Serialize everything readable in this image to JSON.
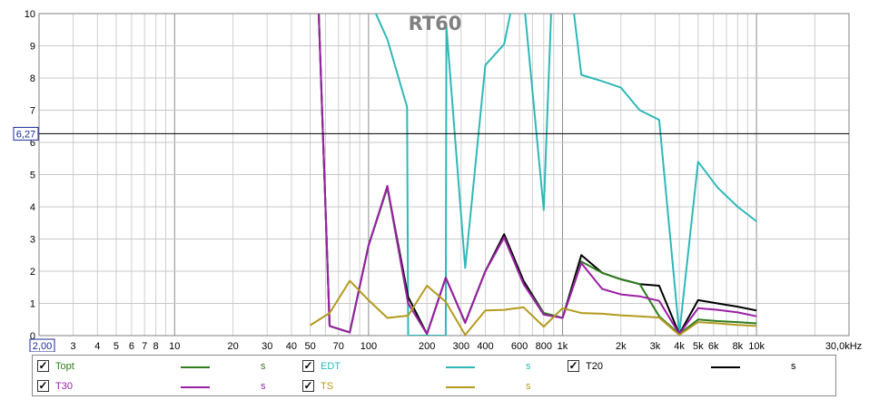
{
  "chart_data": {
    "type": "line",
    "title": "RT60",
    "x_scale": "log",
    "xlim": [
      2,
      30000
    ],
    "ylim": [
      0,
      10
    ],
    "grid": true,
    "cursor_value": "6,27",
    "cursor_y": 6.27,
    "x_ticks": [
      {
        "v": 2,
        "label": "2,00"
      },
      {
        "v": 3,
        "label": "3"
      },
      {
        "v": 4,
        "label": "4"
      },
      {
        "v": 5,
        "label": "5"
      },
      {
        "v": 6,
        "label": "6"
      },
      {
        "v": 7,
        "label": "7"
      },
      {
        "v": 8,
        "label": "8"
      },
      {
        "v": 10,
        "label": "10"
      },
      {
        "v": 20,
        "label": "20"
      },
      {
        "v": 30,
        "label": "30"
      },
      {
        "v": 40,
        "label": "40"
      },
      {
        "v": 50,
        "label": "50"
      },
      {
        "v": 70,
        "label": "70"
      },
      {
        "v": 100,
        "label": "100"
      },
      {
        "v": 200,
        "label": "200"
      },
      {
        "v": 300,
        "label": "300"
      },
      {
        "v": 400,
        "label": "400"
      },
      {
        "v": 600,
        "label": "600"
      },
      {
        "v": 800,
        "label": "800"
      },
      {
        "v": 1000,
        "label": "1k"
      },
      {
        "v": 2000,
        "label": "2k"
      },
      {
        "v": 3000,
        "label": "3k"
      },
      {
        "v": 4000,
        "label": "4k"
      },
      {
        "v": 5000,
        "label": "5k"
      },
      {
        "v": 6000,
        "label": "6k"
      },
      {
        "v": 8000,
        "label": "8k"
      },
      {
        "v": 10000,
        "label": "10k"
      },
      {
        "v": 30000,
        "label": "30,0kHz"
      }
    ],
    "y_ticks": [
      {
        "v": 0,
        "label": "0"
      },
      {
        "v": 1,
        "label": "1"
      },
      {
        "v": 2,
        "label": "2"
      },
      {
        "v": 3,
        "label": "3"
      },
      {
        "v": 4,
        "label": "4"
      },
      {
        "v": 5,
        "label": "5"
      },
      {
        "v": 6,
        "label": "6"
      },
      {
        "v": 7,
        "label": "7"
      },
      {
        "v": 8,
        "label": "8"
      },
      {
        "v": 9,
        "label": "9"
      },
      {
        "v": 10,
        "label": "10"
      }
    ],
    "series": [
      {
        "name": "EDT",
        "color": "#2fb8b8",
        "points": [
          [
            100,
            10.5
          ],
          [
            125,
            9.2
          ],
          [
            158,
            7.1
          ],
          [
            160,
            0
          ],
          [
            250,
            0
          ],
          [
            252,
            9.6
          ],
          [
            315,
            2.1
          ],
          [
            400,
            8.4
          ],
          [
            500,
            9.05
          ],
          [
            560,
            10.5
          ],
          [
            630,
            10.5
          ],
          [
            800,
            3.9
          ],
          [
            880,
            10.5
          ],
          [
            1120,
            10.5
          ],
          [
            1250,
            8.1
          ],
          [
            1600,
            7.9
          ],
          [
            2000,
            7.7
          ],
          [
            2500,
            7.0
          ],
          [
            3150,
            6.7
          ],
          [
            4000,
            0.05
          ],
          [
            5000,
            5.4
          ],
          [
            6300,
            4.6
          ],
          [
            8000,
            4.0
          ],
          [
            10000,
            3.55
          ]
        ]
      },
      {
        "name": "T20",
        "color": "#000000",
        "points": [
          [
            55,
            10.5
          ],
          [
            63,
            0.3
          ],
          [
            80,
            0.1
          ],
          [
            100,
            2.8
          ],
          [
            125,
            4.6
          ],
          [
            160,
            1.2
          ],
          [
            200,
            0.05
          ],
          [
            250,
            1.8
          ],
          [
            315,
            0.4
          ],
          [
            400,
            2.0
          ],
          [
            500,
            3.15
          ],
          [
            630,
            1.7
          ],
          [
            800,
            0.7
          ],
          [
            1000,
            0.55
          ],
          [
            1250,
            2.5
          ],
          [
            1600,
            1.95
          ],
          [
            2000,
            1.75
          ],
          [
            2500,
            1.6
          ],
          [
            3150,
            1.55
          ],
          [
            4000,
            0.05
          ],
          [
            5000,
            1.1
          ],
          [
            6300,
            1.0
          ],
          [
            8000,
            0.9
          ],
          [
            10000,
            0.78
          ]
        ]
      },
      {
        "name": "Topt",
        "color": "#2e7d1e",
        "points": [
          [
            55,
            10.5
          ],
          [
            63,
            0.3
          ],
          [
            80,
            0.1
          ],
          [
            100,
            2.8
          ],
          [
            125,
            4.6
          ],
          [
            160,
            1.0
          ],
          [
            200,
            0.05
          ],
          [
            250,
            1.8
          ],
          [
            315,
            0.4
          ],
          [
            400,
            2.0
          ],
          [
            500,
            3.05
          ],
          [
            630,
            1.6
          ],
          [
            800,
            0.7
          ],
          [
            1000,
            0.55
          ],
          [
            1250,
            2.3
          ],
          [
            1600,
            1.95
          ],
          [
            2000,
            1.75
          ],
          [
            2500,
            1.6
          ],
          [
            3150,
            0.6
          ],
          [
            4000,
            0.05
          ],
          [
            5000,
            0.5
          ],
          [
            6300,
            0.45
          ],
          [
            8000,
            0.42
          ],
          [
            10000,
            0.38
          ]
        ]
      },
      {
        "name": "T30",
        "color": "#9b1fa6",
        "points": [
          [
            55,
            10.5
          ],
          [
            63,
            0.3
          ],
          [
            80,
            0.1
          ],
          [
            100,
            2.8
          ],
          [
            125,
            4.65
          ],
          [
            160,
            1.0
          ],
          [
            200,
            0.05
          ],
          [
            250,
            1.8
          ],
          [
            315,
            0.4
          ],
          [
            400,
            2.0
          ],
          [
            500,
            3.05
          ],
          [
            630,
            1.6
          ],
          [
            800,
            0.65
          ],
          [
            1000,
            0.55
          ],
          [
            1250,
            2.25
          ],
          [
            1600,
            1.45
          ],
          [
            2000,
            1.28
          ],
          [
            2500,
            1.22
          ],
          [
            3150,
            1.08
          ],
          [
            4000,
            0.05
          ],
          [
            5000,
            0.85
          ],
          [
            6300,
            0.8
          ],
          [
            8000,
            0.72
          ],
          [
            10000,
            0.6
          ]
        ]
      },
      {
        "name": "TS",
        "color": "#b39a1e",
        "points": [
          [
            50,
            0.32
          ],
          [
            63,
            0.7
          ],
          [
            80,
            1.7
          ],
          [
            100,
            1.1
          ],
          [
            125,
            0.55
          ],
          [
            160,
            0.62
          ],
          [
            200,
            1.55
          ],
          [
            250,
            1.05
          ],
          [
            315,
            0.02
          ],
          [
            400,
            0.78
          ],
          [
            500,
            0.8
          ],
          [
            630,
            0.88
          ],
          [
            800,
            0.28
          ],
          [
            1000,
            0.85
          ],
          [
            1250,
            0.7
          ],
          [
            1600,
            0.68
          ],
          [
            2000,
            0.63
          ],
          [
            2500,
            0.6
          ],
          [
            3150,
            0.56
          ],
          [
            4000,
            0.02
          ],
          [
            5000,
            0.42
          ],
          [
            6300,
            0.38
          ],
          [
            8000,
            0.33
          ],
          [
            10000,
            0.3
          ]
        ]
      }
    ]
  },
  "legend": {
    "items": [
      {
        "name": "Topt",
        "unit": "s",
        "color": "#2e7d1e",
        "checked": true
      },
      {
        "name": "EDT",
        "unit": "s",
        "color": "#2fb8b8",
        "checked": true
      },
      {
        "name": "T20",
        "unit": "s",
        "color": "#000000",
        "checked": true
      },
      {
        "name": "T30",
        "unit": "s",
        "color": "#9b1fa6",
        "checked": true
      },
      {
        "name": "TS",
        "unit": "s",
        "color": "#b39a1e",
        "checked": true
      }
    ]
  }
}
